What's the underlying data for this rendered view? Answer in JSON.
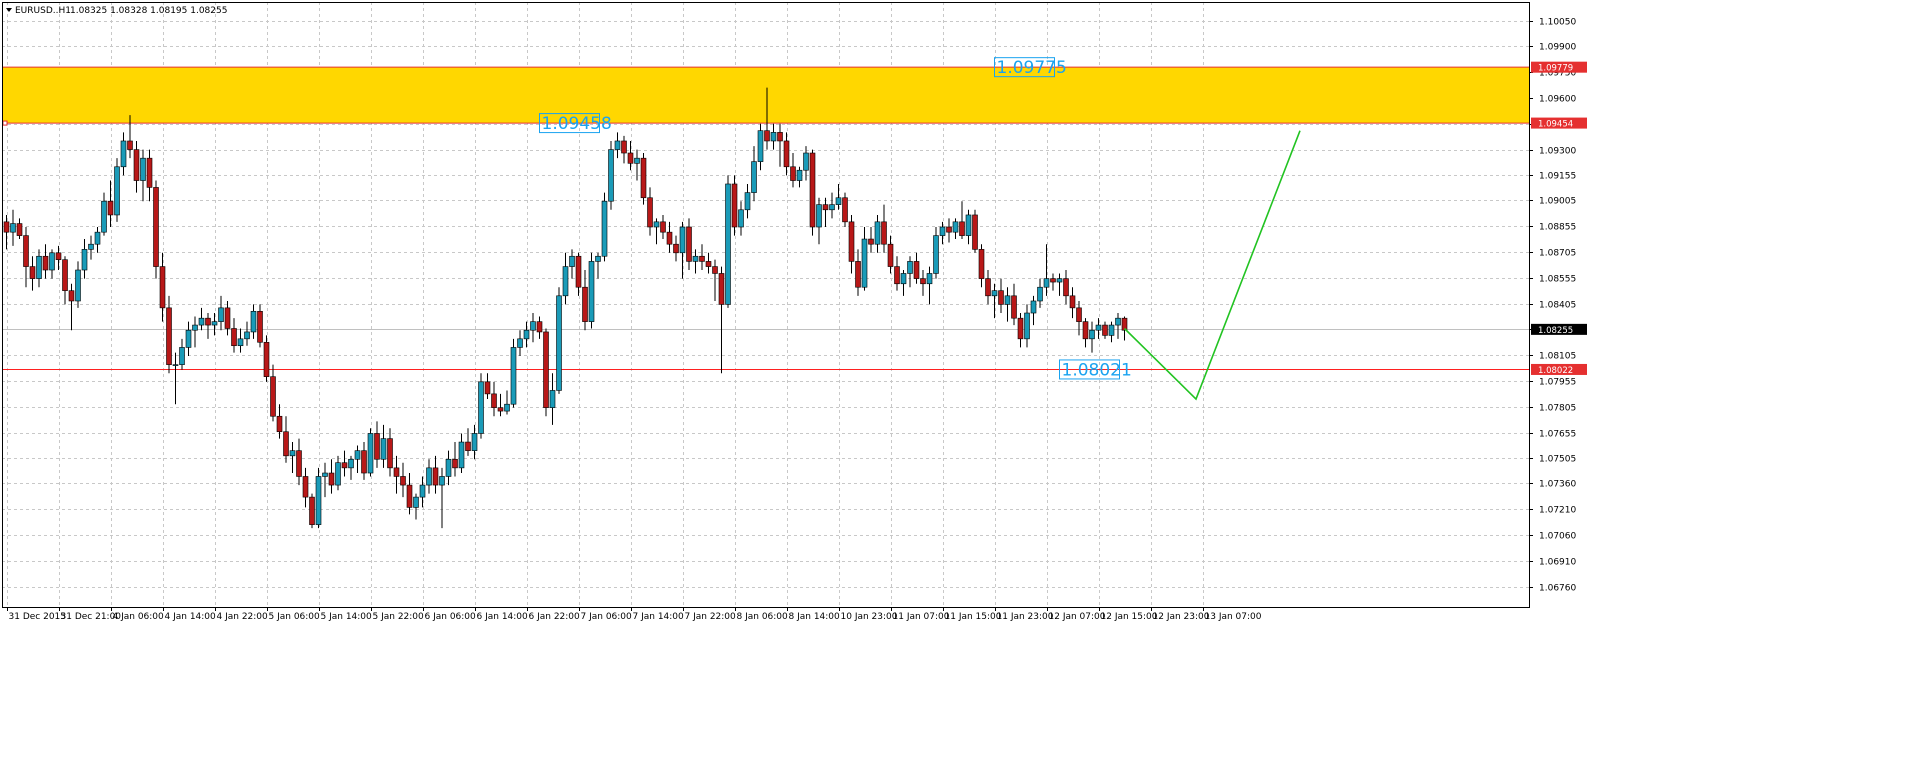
{
  "header": {
    "symbol_label": "EURUSD..H1",
    "ohlc": "1.08325 1.08328 1.08195 1.08255"
  },
  "chart_data": {
    "type": "candlestick",
    "symbol": "EURUSD",
    "timeframe": "H1",
    "ylim": [
      1.0665,
      1.1012
    ],
    "y_ticks": [
      "1.10050",
      "1.09900",
      "1.09750",
      "1.09600",
      "1.09450",
      "1.09300",
      "1.09155",
      "1.09005",
      "1.08855",
      "1.08705",
      "1.08555",
      "1.08405",
      "1.08255",
      "1.08105",
      "1.07955",
      "1.07805",
      "1.07655",
      "1.07505",
      "1.07360",
      "1.07210",
      "1.07060",
      "1.06910",
      "1.06760"
    ],
    "x_labels": [
      "31 Dec 2015",
      "31 Dec 21:00",
      "4 Jan 06:00",
      "4 Jan 14:00",
      "4 Jan 22:00",
      "5 Jan 06:00",
      "5 Jan 14:00",
      "5 Jan 22:00",
      "6 Jan 06:00",
      "6 Jan 14:00",
      "6 Jan 22:00",
      "7 Jan 06:00",
      "7 Jan 14:00",
      "7 Jan 22:00",
      "8 Jan 06:00",
      "8 Jan 14:00",
      "10 Jan 23:00",
      "11 Jan 07:00",
      "11 Jan 15:00",
      "11 Jan 23:00",
      "12 Jan 07:00",
      "12 Jan 15:00",
      "12 Jan 23:00",
      "13 Jan 07:00"
    ],
    "x_label_step": 8,
    "bull_color": "#1a9bb8",
    "bear_color": "#b81818",
    "candles": [
      [
        1.0888,
        1.0892,
        1.0872,
        1.0882
      ],
      [
        1.0882,
        1.0895,
        1.0874,
        1.0887
      ],
      [
        1.0887,
        1.089,
        1.0878,
        1.088
      ],
      [
        1.088,
        1.0885,
        1.085,
        1.0862
      ],
      [
        1.0862,
        1.0868,
        1.0848,
        1.0855
      ],
      [
        1.0855,
        1.0872,
        1.085,
        1.0868
      ],
      [
        1.0868,
        1.0875,
        1.0855,
        1.086
      ],
      [
        1.086,
        1.0872,
        1.0855,
        1.087
      ],
      [
        1.087,
        1.0874,
        1.086,
        1.0866
      ],
      [
        1.0866,
        1.0868,
        1.084,
        1.0848
      ],
      [
        1.0848,
        1.0852,
        1.0825,
        1.0842
      ],
      [
        1.0842,
        1.0865,
        1.0838,
        1.086
      ],
      [
        1.086,
        1.0878,
        1.0855,
        1.0872
      ],
      [
        1.0872,
        1.088,
        1.0866,
        1.0875
      ],
      [
        1.0875,
        1.0885,
        1.087,
        1.0882
      ],
      [
        1.0882,
        1.0905,
        1.088,
        1.09
      ],
      [
        1.09,
        1.0912,
        1.0885,
        1.0892
      ],
      [
        1.0892,
        1.0925,
        1.0888,
        1.092
      ],
      [
        1.092,
        1.094,
        1.0915,
        1.0935
      ],
      [
        1.0935,
        1.095,
        1.0925,
        1.093
      ],
      [
        1.093,
        1.0935,
        1.0905,
        1.0912
      ],
      [
        1.0912,
        1.093,
        1.09,
        1.0925
      ],
      [
        1.0925,
        1.093,
        1.09,
        1.0908
      ],
      [
        1.0908,
        1.0912,
        1.0855,
        1.0862
      ],
      [
        1.0862,
        1.087,
        1.083,
        1.0838
      ],
      [
        1.0838,
        1.0845,
        1.08,
        1.0805
      ],
      [
        1.0805,
        1.0812,
        1.0782,
        1.0805
      ],
      [
        1.0805,
        1.082,
        1.0802,
        1.0815
      ],
      [
        1.0815,
        1.083,
        1.081,
        1.0825
      ],
      [
        1.0825,
        1.0833,
        1.0815,
        1.0828
      ],
      [
        1.0828,
        1.0838,
        1.0825,
        1.0832
      ],
      [
        1.0832,
        1.0835,
        1.082,
        1.0828
      ],
      [
        1.0828,
        1.0835,
        1.0822,
        1.083
      ],
      [
        1.083,
        1.0845,
        1.0825,
        1.0838
      ],
      [
        1.0838,
        1.0842,
        1.0822,
        1.0826
      ],
      [
        1.0826,
        1.0832,
        1.0812,
        1.0816
      ],
      [
        1.0816,
        1.0826,
        1.0812,
        1.082
      ],
      [
        1.082,
        1.083,
        1.0816,
        1.0824
      ],
      [
        1.0824,
        1.084,
        1.082,
        1.0836
      ],
      [
        1.0836,
        1.084,
        1.0815,
        1.0818
      ],
      [
        1.0818,
        1.0822,
        1.0795,
        1.0798
      ],
      [
        1.0798,
        1.0805,
        1.0772,
        1.0775
      ],
      [
        1.0775,
        1.0782,
        1.0762,
        1.0766
      ],
      [
        1.0766,
        1.0775,
        1.0748,
        1.0752
      ],
      [
        1.0752,
        1.076,
        1.0742,
        1.0755
      ],
      [
        1.0755,
        1.0762,
        1.0735,
        1.074
      ],
      [
        1.074,
        1.0745,
        1.0722,
        1.0728
      ],
      [
        1.0728,
        1.073,
        1.071,
        1.0712
      ],
      [
        1.0712,
        1.0745,
        1.071,
        1.074
      ],
      [
        1.074,
        1.0748,
        1.0728,
        1.0742
      ],
      [
        1.0742,
        1.075,
        1.073,
        1.0735
      ],
      [
        1.0735,
        1.0752,
        1.0732,
        1.0748
      ],
      [
        1.0748,
        1.0755,
        1.074,
        1.0745
      ],
      [
        1.0745,
        1.0752,
        1.0738,
        1.075
      ],
      [
        1.075,
        1.0758,
        1.0742,
        1.0755
      ],
      [
        1.0755,
        1.076,
        1.0738,
        1.0742
      ],
      [
        1.0742,
        1.0768,
        1.074,
        1.0765
      ],
      [
        1.0765,
        1.0772,
        1.0745,
        1.075
      ],
      [
        1.075,
        1.077,
        1.0745,
        1.0762
      ],
      [
        1.0762,
        1.0768,
        1.074,
        1.0745
      ],
      [
        1.0745,
        1.0752,
        1.073,
        1.074
      ],
      [
        1.074,
        1.0748,
        1.0728,
        1.0735
      ],
      [
        1.0735,
        1.0742,
        1.0718,
        1.0722
      ],
      [
        1.0722,
        1.073,
        1.0715,
        1.0728
      ],
      [
        1.0728,
        1.074,
        1.0722,
        1.0735
      ],
      [
        1.0735,
        1.075,
        1.073,
        1.0745
      ],
      [
        1.0745,
        1.0752,
        1.073,
        1.0735
      ],
      [
        1.0735,
        1.0745,
        1.071,
        1.074
      ],
      [
        1.074,
        1.0755,
        1.0735,
        1.075
      ],
      [
        1.075,
        1.076,
        1.074,
        1.0745
      ],
      [
        1.0745,
        1.0765,
        1.0742,
        1.076
      ],
      [
        1.076,
        1.0768,
        1.0752,
        1.0755
      ],
      [
        1.0755,
        1.077,
        1.075,
        1.0765
      ],
      [
        1.0765,
        1.08,
        1.0762,
        1.0795
      ],
      [
        1.0795,
        1.08,
        1.0785,
        1.0788
      ],
      [
        1.0788,
        1.0795,
        1.0775,
        1.078
      ],
      [
        1.078,
        1.0788,
        1.0775,
        1.0778
      ],
      [
        1.0778,
        1.079,
        1.0776,
        1.0782
      ],
      [
        1.0782,
        1.082,
        1.078,
        1.0815
      ],
      [
        1.0815,
        1.0825,
        1.081,
        1.082
      ],
      [
        1.082,
        1.083,
        1.0815,
        1.0825
      ],
      [
        1.0825,
        1.0835,
        1.0818,
        1.083
      ],
      [
        1.083,
        1.0833,
        1.082,
        1.0824
      ],
      [
        1.0824,
        1.0826,
        1.0775,
        1.078
      ],
      [
        1.078,
        1.08,
        1.077,
        1.079
      ],
      [
        1.079,
        1.085,
        1.0788,
        1.0845
      ],
      [
        1.0845,
        1.087,
        1.084,
        1.0862
      ],
      [
        1.0862,
        1.0872,
        1.0855,
        1.0868
      ],
      [
        1.0868,
        1.087,
        1.0845,
        1.085
      ],
      [
        1.085,
        1.086,
        1.0825,
        1.083
      ],
      [
        1.083,
        1.087,
        1.0826,
        1.0865
      ],
      [
        1.0865,
        1.087,
        1.0855,
        1.0868
      ],
      [
        1.0868,
        1.0905,
        1.0865,
        1.09
      ],
      [
        1.09,
        1.0935,
        1.0895,
        1.093
      ],
      [
        1.093,
        1.094,
        1.0925,
        1.0935
      ],
      [
        1.0935,
        1.0938,
        1.0922,
        1.0928
      ],
      [
        1.0928,
        1.0935,
        1.0918,
        1.0922
      ],
      [
        1.0922,
        1.093,
        1.0912,
        1.0925
      ],
      [
        1.0925,
        1.0928,
        1.0898,
        1.0902
      ],
      [
        1.0902,
        1.0908,
        1.088,
        1.0885
      ],
      [
        1.0885,
        1.089,
        1.0875,
        1.0888
      ],
      [
        1.0888,
        1.0892,
        1.0878,
        1.0882
      ],
      [
        1.0882,
        1.0888,
        1.087,
        1.0875
      ],
      [
        1.0875,
        1.088,
        1.0865,
        1.087
      ],
      [
        1.087,
        1.0888,
        1.0855,
        1.0885
      ],
      [
        1.0885,
        1.089,
        1.086,
        1.0865
      ],
      [
        1.0865,
        1.0872,
        1.0858,
        1.0868
      ],
      [
        1.0868,
        1.0875,
        1.086,
        1.0865
      ],
      [
        1.0865,
        1.087,
        1.0858,
        1.0862
      ],
      [
        1.0862,
        1.0866,
        1.0842,
        1.0858
      ],
      [
        1.0858,
        1.0862,
        1.08,
        1.084
      ],
      [
        1.084,
        1.0915,
        1.0838,
        1.091
      ],
      [
        1.091,
        1.0915,
        1.088,
        1.0885
      ],
      [
        1.0885,
        1.09,
        1.088,
        1.0895
      ],
      [
        1.0895,
        1.091,
        1.089,
        1.0905
      ],
      [
        1.0905,
        1.0932,
        1.09,
        1.0923
      ],
      [
        1.0923,
        1.0945,
        1.0918,
        1.0941
      ],
      [
        1.0941,
        1.0966,
        1.093,
        1.0935
      ],
      [
        1.0935,
        1.0945,
        1.093,
        1.094
      ],
      [
        1.094,
        1.0945,
        1.092,
        1.0935
      ],
      [
        1.0935,
        1.094,
        1.0915,
        1.092
      ],
      [
        1.092,
        1.0928,
        1.0908,
        1.0912
      ],
      [
        1.0912,
        1.092,
        1.0908,
        1.0918
      ],
      [
        1.0918,
        1.0932,
        1.0912,
        1.0928
      ],
      [
        1.0928,
        1.093,
        1.088,
        1.0885
      ],
      [
        1.0885,
        1.0902,
        1.0875,
        1.0898
      ],
      [
        1.0898,
        1.0902,
        1.0885,
        1.0895
      ],
      [
        1.0895,
        1.0905,
        1.089,
        1.0898
      ],
      [
        1.0898,
        1.091,
        1.0895,
        1.0902
      ],
      [
        1.0902,
        1.0905,
        1.0885,
        1.0888
      ],
      [
        1.0888,
        1.0892,
        1.0858,
        1.0865
      ],
      [
        1.0865,
        1.0872,
        1.0845,
        1.085
      ],
      [
        1.085,
        1.0885,
        1.0848,
        1.0878
      ],
      [
        1.0878,
        1.0885,
        1.087,
        1.0875
      ],
      [
        1.0875,
        1.0892,
        1.087,
        1.0888
      ],
      [
        1.0888,
        1.0898,
        1.087,
        1.0875
      ],
      [
        1.0875,
        1.088,
        1.0858,
        1.0862
      ],
      [
        1.0862,
        1.0868,
        1.0848,
        1.0852
      ],
      [
        1.0852,
        1.086,
        1.0845,
        1.0858
      ],
      [
        1.0858,
        1.0868,
        1.085,
        1.0865
      ],
      [
        1.0865,
        1.087,
        1.0852,
        1.0855
      ],
      [
        1.0855,
        1.086,
        1.0845,
        1.0852
      ],
      [
        1.0852,
        1.0862,
        1.084,
        1.0858
      ],
      [
        1.0858,
        1.0885,
        1.0855,
        1.088
      ],
      [
        1.088,
        1.0888,
        1.0875,
        1.0885
      ],
      [
        1.0885,
        1.089,
        1.0876,
        1.0882
      ],
      [
        1.0882,
        1.089,
        1.0878,
        1.0888
      ],
      [
        1.0888,
        1.09,
        1.0878,
        1.088
      ],
      [
        1.088,
        1.0895,
        1.0875,
        1.0892
      ],
      [
        1.0892,
        1.0895,
        1.087,
        1.0872
      ],
      [
        1.0872,
        1.0875,
        1.085,
        1.0855
      ],
      [
        1.0855,
        1.086,
        1.084,
        1.0845
      ],
      [
        1.0845,
        1.0852,
        1.0832,
        1.0848
      ],
      [
        1.0848,
        1.0855,
        1.0835,
        1.084
      ],
      [
        1.084,
        1.085,
        1.083,
        1.0845
      ],
      [
        1.0845,
        1.0852,
        1.0828,
        1.0832
      ],
      [
        1.0832,
        1.0835,
        1.0815,
        1.082
      ],
      [
        1.082,
        1.084,
        1.0815,
        1.0835
      ],
      [
        1.0835,
        1.0845,
        1.0828,
        1.0842
      ],
      [
        1.0842,
        1.0855,
        1.0838,
        1.085
      ],
      [
        1.085,
        1.0875,
        1.0845,
        1.0855
      ],
      [
        1.0855,
        1.0858,
        1.0848,
        1.0853
      ],
      [
        1.0853,
        1.0858,
        1.0845,
        1.0855
      ],
      [
        1.0855,
        1.086,
        1.084,
        1.0845
      ],
      [
        1.0845,
        1.085,
        1.0832,
        1.0838
      ],
      [
        1.0838,
        1.0842,
        1.0822,
        1.083
      ],
      [
        1.083,
        1.0832,
        1.0815,
        1.082
      ],
      [
        1.082,
        1.083,
        1.0812,
        1.0825
      ],
      [
        1.0825,
        1.0832,
        1.082,
        1.0828
      ],
      [
        1.0828,
        1.083,
        1.082,
        1.0822
      ],
      [
        1.0822,
        1.083,
        1.0818,
        1.0828
      ],
      [
        1.0828,
        1.0835,
        1.082,
        1.0832
      ],
      [
        1.0832,
        1.0833,
        1.0819,
        1.0825
      ]
    ],
    "resistance_zone": {
      "top": 1.09779,
      "bottom": 1.09454,
      "color": "#ffd700"
    },
    "support_line": {
      "price": 1.08022,
      "color": "#ff2020"
    },
    "current_price": 1.08255,
    "price_tags": {
      "zone_top": "1.09779",
      "zone_bottom": "1.09454",
      "support": "1.08022",
      "current": "1.08255"
    },
    "annotations": [
      {
        "text": "1.09458",
        "price": 1.09454,
        "bar": 82
      },
      {
        "text": "1.09775",
        "price": 1.09779,
        "bar": 152
      },
      {
        "text": "1.08021",
        "price": 1.08022,
        "bar": 162
      }
    ],
    "projection": {
      "color": "#22c322",
      "points": [
        [
          172,
          1.0826
        ],
        [
          183,
          1.0785
        ],
        [
          199,
          1.0941
        ]
      ]
    }
  }
}
